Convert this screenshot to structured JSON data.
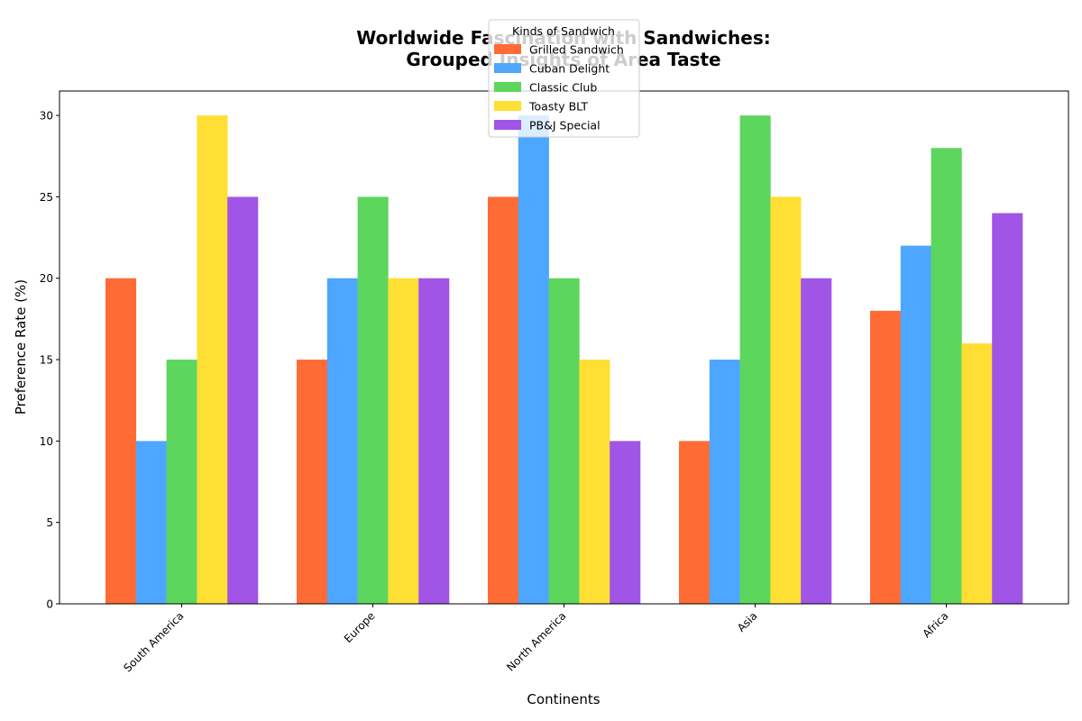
{
  "chart_data": {
    "type": "bar",
    "title_line1": "Worldwide Fascination with Sandwiches:",
    "title_line2": "Grouped Insights of Area Taste",
    "xlabel": "Continents",
    "ylabel": "Preference Rate (%)",
    "ylim": [
      0,
      31.5
    ],
    "yticks": [
      0,
      5,
      10,
      15,
      20,
      25,
      30
    ],
    "categories": [
      "South America",
      "Europe",
      "North America",
      "Asia",
      "Africa"
    ],
    "legend_title": "Kinds of Sandwich",
    "legend_position": "top-center",
    "grid": false,
    "series": [
      {
        "name": "Grilled Sandwich",
        "color": "#ff6b35",
        "values": [
          20,
          15,
          25,
          10,
          18
        ]
      },
      {
        "name": "Cuban Delight",
        "color": "#4da6ff",
        "values": [
          10,
          20,
          30,
          15,
          22
        ]
      },
      {
        "name": "Classic Club",
        "color": "#5cd65c",
        "values": [
          15,
          25,
          20,
          30,
          28
        ]
      },
      {
        "name": "Toasty BLT",
        "color": "#ffdf33",
        "values": [
          30,
          20,
          15,
          25,
          16
        ]
      },
      {
        "name": "PB&J Special",
        "color": "#a055e6",
        "values": [
          25,
          20,
          10,
          20,
          24
        ]
      }
    ]
  }
}
